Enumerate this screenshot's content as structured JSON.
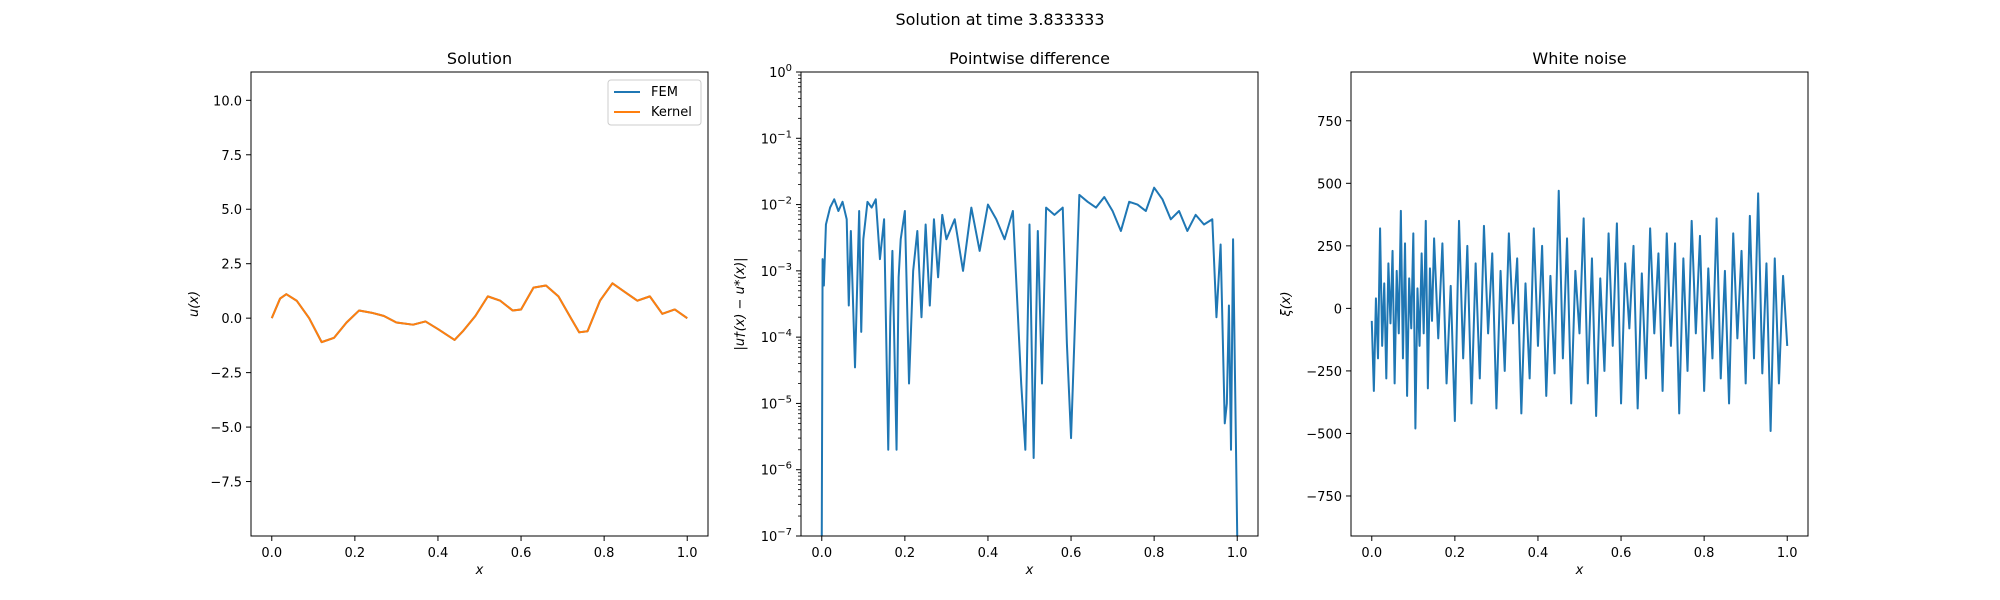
{
  "figure": {
    "suptitle": "Solution at time 3.833333"
  },
  "colors": {
    "fem": "#1f77b4",
    "kernel": "#ff7f0e",
    "diff": "#1f77b4",
    "noise": "#1f77b4"
  },
  "chart_data": [
    {
      "type": "line",
      "title": "Solution",
      "xlabel": "x",
      "ylabel": "u(x)",
      "xlim": [
        -0.05,
        1.05
      ],
      "ylim": [
        -10,
        11.3
      ],
      "xticks": [
        0.0,
        0.2,
        0.4,
        0.6,
        0.8,
        1.0
      ],
      "xtick_labels": [
        "0.0",
        "0.2",
        "0.4",
        "0.6",
        "0.8",
        "1.0"
      ],
      "yticks": [
        -7.5,
        -5.0,
        -2.5,
        0.0,
        2.5,
        5.0,
        7.5,
        10.0
      ],
      "ytick_labels": [
        "−7.5",
        "−5.0",
        "−2.5",
        "0.0",
        "2.5",
        "5.0",
        "7.5",
        "10.0"
      ],
      "legend": "top-right",
      "series": [
        {
          "name": "FEM",
          "color": "#1f77b4",
          "x": [
            0.0,
            0.02,
            0.035,
            0.06,
            0.09,
            0.12,
            0.15,
            0.18,
            0.21,
            0.24,
            0.27,
            0.3,
            0.34,
            0.37,
            0.4,
            0.44,
            0.46,
            0.49,
            0.52,
            0.55,
            0.58,
            0.6,
            0.63,
            0.66,
            0.69,
            0.72,
            0.74,
            0.76,
            0.79,
            0.82,
            0.85,
            0.88,
            0.91,
            0.94,
            0.97,
            1.0
          ],
          "y": [
            0.0,
            0.9,
            1.1,
            0.8,
            0.0,
            -1.1,
            -0.9,
            -0.2,
            0.35,
            0.25,
            0.1,
            -0.2,
            -0.3,
            -0.15,
            -0.5,
            -1.0,
            -0.6,
            0.1,
            1.0,
            0.8,
            0.35,
            0.4,
            1.4,
            1.5,
            1.0,
            0.0,
            -0.65,
            -0.6,
            0.8,
            1.6,
            1.2,
            0.8,
            1.0,
            0.2,
            0.4,
            0.0
          ]
        },
        {
          "name": "Kernel",
          "color": "#ff7f0e",
          "x": [
            0.0,
            0.02,
            0.035,
            0.06,
            0.09,
            0.12,
            0.15,
            0.18,
            0.21,
            0.24,
            0.27,
            0.3,
            0.34,
            0.37,
            0.4,
            0.44,
            0.46,
            0.49,
            0.52,
            0.55,
            0.58,
            0.6,
            0.63,
            0.66,
            0.69,
            0.72,
            0.74,
            0.76,
            0.79,
            0.82,
            0.85,
            0.88,
            0.91,
            0.94,
            0.97,
            1.0
          ],
          "y": [
            0.0,
            0.9,
            1.1,
            0.8,
            0.0,
            -1.1,
            -0.9,
            -0.2,
            0.35,
            0.25,
            0.1,
            -0.2,
            -0.3,
            -0.15,
            -0.5,
            -1.0,
            -0.6,
            0.1,
            1.0,
            0.8,
            0.35,
            0.4,
            1.4,
            1.5,
            1.0,
            0.0,
            -0.65,
            -0.6,
            0.8,
            1.6,
            1.2,
            0.8,
            1.0,
            0.2,
            0.4,
            0.0
          ]
        }
      ]
    },
    {
      "type": "line",
      "title": "Pointwise difference",
      "xlabel": "x",
      "ylabel": "|u†(x) − u*(x)|",
      "yscale": "log",
      "xlim": [
        -0.05,
        1.05
      ],
      "ylim": [
        1e-07,
        1
      ],
      "xticks": [
        0.0,
        0.2,
        0.4,
        0.6,
        0.8,
        1.0
      ],
      "xtick_labels": [
        "0.0",
        "0.2",
        "0.4",
        "0.6",
        "0.8",
        "1.0"
      ],
      "yticks": [
        1e-07,
        1e-06,
        1e-05,
        0.0001,
        0.001,
        0.01,
        0.1,
        1
      ],
      "ytick_exponents": [
        "−7",
        "−6",
        "−5",
        "−4",
        "−3",
        "−2",
        "−1",
        "0"
      ],
      "series": [
        {
          "color": "#1f77b4",
          "x": [
            0.0,
            0.002,
            0.005,
            0.01,
            0.02,
            0.03,
            0.04,
            0.05,
            0.06,
            0.065,
            0.07,
            0.08,
            0.09,
            0.095,
            0.1,
            0.11,
            0.12,
            0.13,
            0.14,
            0.15,
            0.16,
            0.165,
            0.17,
            0.18,
            0.185,
            0.19,
            0.2,
            0.21,
            0.22,
            0.23,
            0.24,
            0.25,
            0.26,
            0.27,
            0.28,
            0.29,
            0.3,
            0.32,
            0.34,
            0.36,
            0.38,
            0.4,
            0.42,
            0.44,
            0.46,
            0.48,
            0.49,
            0.5,
            0.51,
            0.52,
            0.53,
            0.54,
            0.56,
            0.58,
            0.59,
            0.6,
            0.62,
            0.64,
            0.66,
            0.68,
            0.7,
            0.72,
            0.74,
            0.76,
            0.78,
            0.8,
            0.82,
            0.84,
            0.86,
            0.88,
            0.9,
            0.92,
            0.94,
            0.95,
            0.96,
            0.97,
            0.975,
            0.98,
            0.985,
            0.99,
            1.0
          ],
          "y": [
            1e-07,
            0.0015,
            0.0006,
            0.005,
            0.009,
            0.012,
            0.008,
            0.011,
            0.006,
            0.0003,
            0.004,
            3.5e-05,
            0.008,
            0.00012,
            0.003,
            0.011,
            0.009,
            0.012,
            0.0015,
            0.006,
            2e-06,
            0.0002,
            0.002,
            2e-06,
            0.0008,
            0.003,
            0.008,
            2e-05,
            0.001,
            0.004,
            0.0002,
            0.005,
            0.0003,
            0.006,
            0.0008,
            0.007,
            0.003,
            0.006,
            0.001,
            0.009,
            0.002,
            0.01,
            0.006,
            0.003,
            0.008,
            2e-05,
            2e-06,
            0.005,
            1.5e-06,
            0.004,
            2e-05,
            0.009,
            0.007,
            0.009,
            8e-05,
            3e-06,
            0.014,
            0.011,
            0.009,
            0.013,
            0.008,
            0.004,
            0.011,
            0.01,
            0.008,
            0.018,
            0.012,
            0.006,
            0.008,
            0.004,
            0.007,
            0.005,
            0.006,
            0.0002,
            0.0025,
            5e-06,
            1e-05,
            0.0003,
            2e-06,
            0.003,
            1e-07
          ]
        }
      ]
    },
    {
      "type": "line",
      "title": "White noise",
      "xlabel": "x",
      "ylabel": "ξ(x)",
      "xlim": [
        -0.05,
        1.05
      ],
      "ylim": [
        -910,
        945
      ],
      "xticks": [
        0.0,
        0.2,
        0.4,
        0.6,
        0.8,
        1.0
      ],
      "xtick_labels": [
        "0.0",
        "0.2",
        "0.4",
        "0.6",
        "0.8",
        "1.0"
      ],
      "yticks": [
        -750,
        -500,
        -250,
        0,
        250,
        500,
        750
      ],
      "ytick_labels": [
        "−750",
        "−500",
        "−250",
        "0",
        "250",
        "500",
        "750"
      ],
      "series": [
        {
          "color": "#1f77b4",
          "x": [
            0.0,
            0.005,
            0.01,
            0.015,
            0.02,
            0.025,
            0.03,
            0.035,
            0.04,
            0.045,
            0.05,
            0.055,
            0.06,
            0.065,
            0.07,
            0.075,
            0.08,
            0.085,
            0.09,
            0.095,
            0.1,
            0.105,
            0.11,
            0.115,
            0.12,
            0.125,
            0.13,
            0.135,
            0.14,
            0.145,
            0.15,
            0.16,
            0.17,
            0.18,
            0.19,
            0.2,
            0.21,
            0.22,
            0.23,
            0.24,
            0.25,
            0.26,
            0.27,
            0.28,
            0.29,
            0.3,
            0.31,
            0.32,
            0.33,
            0.34,
            0.35,
            0.36,
            0.37,
            0.38,
            0.39,
            0.4,
            0.41,
            0.42,
            0.43,
            0.44,
            0.45,
            0.46,
            0.47,
            0.48,
            0.49,
            0.5,
            0.51,
            0.52,
            0.53,
            0.54,
            0.55,
            0.56,
            0.57,
            0.58,
            0.59,
            0.6,
            0.61,
            0.62,
            0.63,
            0.64,
            0.65,
            0.66,
            0.67,
            0.68,
            0.69,
            0.7,
            0.71,
            0.72,
            0.73,
            0.74,
            0.75,
            0.76,
            0.77,
            0.78,
            0.79,
            0.8,
            0.81,
            0.82,
            0.83,
            0.84,
            0.85,
            0.86,
            0.87,
            0.88,
            0.89,
            0.9,
            0.91,
            0.92,
            0.93,
            0.94,
            0.95,
            0.96,
            0.97,
            0.98,
            0.99,
            1.0
          ],
          "y": [
            -50,
            -330,
            40,
            -200,
            320,
            -150,
            100,
            -280,
            180,
            -60,
            230,
            -300,
            150,
            -100,
            390,
            -200,
            260,
            -350,
            120,
            -80,
            300,
            -480,
            80,
            -150,
            220,
            -100,
            350,
            -320,
            160,
            -50,
            280,
            -120,
            260,
            -300,
            90,
            -450,
            350,
            -200,
            250,
            -380,
            180,
            -280,
            330,
            -100,
            220,
            -400,
            150,
            -250,
            300,
            -60,
            200,
            -420,
            100,
            -280,
            320,
            -150,
            250,
            -350,
            130,
            -260,
            470,
            -200,
            280,
            -380,
            150,
            -100,
            360,
            -300,
            200,
            -430,
            120,
            -250,
            300,
            -150,
            340,
            -380,
            180,
            -80,
            250,
            -400,
            140,
            -280,
            320,
            -100,
            220,
            -330,
            300,
            -150,
            260,
            -420,
            200,
            -250,
            350,
            -100,
            290,
            -330,
            160,
            -200,
            360,
            -280,
            150,
            -380,
            300,
            -120,
            230,
            -300,
            370,
            -200,
            460,
            -260,
            180,
            -490,
            200,
            -300,
            130,
            -150
          ]
        }
      ]
    }
  ]
}
